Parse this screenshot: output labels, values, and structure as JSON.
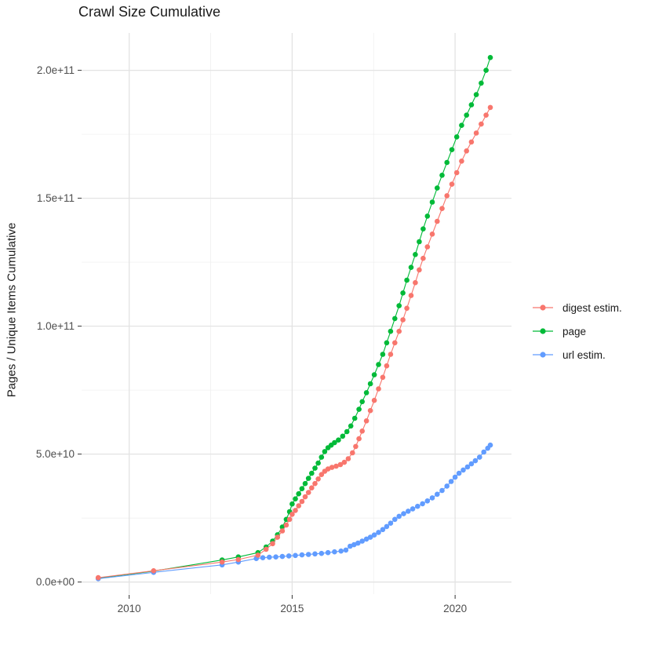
{
  "chart_data": {
    "type": "line",
    "title": "Crawl Size Cumulative",
    "xlabel": "",
    "ylabel": "Pages / Unique Items Cumulative",
    "value_unit_note": "values stored in billions (1e9); axis shows scientific notation",
    "grid": true,
    "legend_position": "right",
    "x_domain": [
      2008.54,
      2021.73
    ],
    "y_domain_billions": [
      -4.7,
      214.6
    ],
    "x_major_ticks": [
      {
        "value": 2010,
        "label": "2010"
      },
      {
        "value": 2015,
        "label": "2015"
      },
      {
        "value": 2020,
        "label": "2020"
      }
    ],
    "x_minor_ticks": [
      2012.5,
      2017.5
    ],
    "y_major_ticks": [
      {
        "value": 0,
        "label": "0.0e+00"
      },
      {
        "value": 50,
        "label": "5.0e+10"
      },
      {
        "value": 100,
        "label": "1.0e+11"
      },
      {
        "value": 150,
        "label": "1.5e+11"
      },
      {
        "value": 200,
        "label": "2.0e+11"
      }
    ],
    "y_minor_ticks": [
      25,
      75,
      125,
      175
    ],
    "series": [
      {
        "name": "digest estim.",
        "color": "#F8766D",
        "points": [
          [
            2009.05,
            1.7
          ],
          [
            2010.75,
            4.4
          ],
          [
            2012.85,
            7.8
          ],
          [
            2013.35,
            8.8
          ],
          [
            2013.95,
            10.5
          ],
          [
            2014.2,
            12.8
          ],
          [
            2014.4,
            15
          ],
          [
            2014.55,
            17.5
          ],
          [
            2014.7,
            20
          ],
          [
            2014.82,
            22.3
          ],
          [
            2014.92,
            24.5
          ],
          [
            2015.0,
            26.5
          ],
          [
            2015.1,
            28
          ],
          [
            2015.2,
            29.8
          ],
          [
            2015.3,
            31.5
          ],
          [
            2015.4,
            33.3
          ],
          [
            2015.5,
            35
          ],
          [
            2015.6,
            36.8
          ],
          [
            2015.7,
            38.5
          ],
          [
            2015.8,
            40.3
          ],
          [
            2015.9,
            42
          ],
          [
            2016.0,
            43.3
          ],
          [
            2016.1,
            44.2
          ],
          [
            2016.22,
            44.8
          ],
          [
            2016.35,
            45.3
          ],
          [
            2016.48,
            45.9
          ],
          [
            2016.6,
            46.8
          ],
          [
            2016.72,
            48.2
          ],
          [
            2016.85,
            50.5
          ],
          [
            2016.95,
            53
          ],
          [
            2017.05,
            56
          ],
          [
            2017.15,
            59
          ],
          [
            2017.28,
            63
          ],
          [
            2017.4,
            67
          ],
          [
            2017.52,
            71
          ],
          [
            2017.65,
            75.5
          ],
          [
            2017.78,
            80
          ],
          [
            2017.9,
            84.5
          ],
          [
            2018.02,
            89
          ],
          [
            2018.15,
            93.5
          ],
          [
            2018.28,
            98
          ],
          [
            2018.4,
            102.5
          ],
          [
            2018.52,
            107
          ],
          [
            2018.65,
            112
          ],
          [
            2018.78,
            117
          ],
          [
            2018.9,
            122
          ],
          [
            2019.02,
            126.5
          ],
          [
            2019.15,
            131
          ],
          [
            2019.3,
            136
          ],
          [
            2019.45,
            141
          ],
          [
            2019.6,
            146
          ],
          [
            2019.75,
            151
          ],
          [
            2019.9,
            155.5
          ],
          [
            2020.05,
            160
          ],
          [
            2020.2,
            164.5
          ],
          [
            2020.35,
            168.5
          ],
          [
            2020.5,
            172
          ],
          [
            2020.65,
            175.5
          ],
          [
            2020.8,
            179
          ],
          [
            2020.95,
            182.5
          ],
          [
            2021.08,
            185.5
          ]
        ]
      },
      {
        "name": "page",
        "color": "#00BA38",
        "points": [
          [
            2009.05,
            1.5
          ],
          [
            2010.75,
            4.3
          ],
          [
            2012.85,
            8.6
          ],
          [
            2013.35,
            9.8
          ],
          [
            2013.95,
            11.5
          ],
          [
            2014.2,
            13.7
          ],
          [
            2014.4,
            16
          ],
          [
            2014.55,
            18.5
          ],
          [
            2014.7,
            21.5
          ],
          [
            2014.82,
            24.5
          ],
          [
            2014.92,
            27.5
          ],
          [
            2015.0,
            30.5
          ],
          [
            2015.1,
            32.5
          ],
          [
            2015.2,
            34.5
          ],
          [
            2015.3,
            36.5
          ],
          [
            2015.4,
            38.5
          ],
          [
            2015.5,
            40.5
          ],
          [
            2015.6,
            42.5
          ],
          [
            2015.7,
            44.5
          ],
          [
            2015.8,
            46.5
          ],
          [
            2015.9,
            48.8
          ],
          [
            2016.0,
            51
          ],
          [
            2016.1,
            52.5
          ],
          [
            2016.2,
            53.5
          ],
          [
            2016.3,
            54.5
          ],
          [
            2016.42,
            55.5
          ],
          [
            2016.55,
            57
          ],
          [
            2016.68,
            58.8
          ],
          [
            2016.8,
            61
          ],
          [
            2016.92,
            64
          ],
          [
            2017.05,
            67.5
          ],
          [
            2017.15,
            70.5
          ],
          [
            2017.28,
            74
          ],
          [
            2017.4,
            77.5
          ],
          [
            2017.52,
            81
          ],
          [
            2017.65,
            85
          ],
          [
            2017.78,
            89
          ],
          [
            2017.9,
            93.5
          ],
          [
            2018.02,
            98
          ],
          [
            2018.15,
            103
          ],
          [
            2018.28,
            108
          ],
          [
            2018.4,
            113
          ],
          [
            2018.52,
            118
          ],
          [
            2018.65,
            123
          ],
          [
            2018.78,
            128
          ],
          [
            2018.9,
            133
          ],
          [
            2019.02,
            138
          ],
          [
            2019.15,
            143
          ],
          [
            2019.3,
            148.5
          ],
          [
            2019.45,
            154
          ],
          [
            2019.6,
            159
          ],
          [
            2019.75,
            164
          ],
          [
            2019.9,
            169
          ],
          [
            2020.05,
            174
          ],
          [
            2020.2,
            178.5
          ],
          [
            2020.35,
            182.5
          ],
          [
            2020.5,
            186.5
          ],
          [
            2020.65,
            190.5
          ],
          [
            2020.8,
            195
          ],
          [
            2020.95,
            200
          ],
          [
            2021.08,
            205
          ]
        ]
      },
      {
        "name": "url estim.",
        "color": "#619CFF",
        "points": [
          [
            2009.05,
            1.3
          ],
          [
            2010.75,
            3.8
          ],
          [
            2012.85,
            6.7
          ],
          [
            2013.35,
            7.8
          ],
          [
            2013.9,
            9.2
          ],
          [
            2014.1,
            9.5
          ],
          [
            2014.3,
            9.7
          ],
          [
            2014.5,
            9.8
          ],
          [
            2014.7,
            10
          ],
          [
            2014.9,
            10.2
          ],
          [
            2015.1,
            10.4
          ],
          [
            2015.3,
            10.6
          ],
          [
            2015.5,
            10.8
          ],
          [
            2015.7,
            11
          ],
          [
            2015.9,
            11.2
          ],
          [
            2016.1,
            11.5
          ],
          [
            2016.3,
            11.8
          ],
          [
            2016.5,
            12.1
          ],
          [
            2016.65,
            12.5
          ],
          [
            2016.78,
            14
          ],
          [
            2016.9,
            14.6
          ],
          [
            2017.02,
            15.2
          ],
          [
            2017.15,
            16
          ],
          [
            2017.28,
            16.8
          ],
          [
            2017.4,
            17.5
          ],
          [
            2017.52,
            18.4
          ],
          [
            2017.65,
            19.4
          ],
          [
            2017.78,
            20.5
          ],
          [
            2017.9,
            21.7
          ],
          [
            2018.02,
            23
          ],
          [
            2018.15,
            24.5
          ],
          [
            2018.28,
            25.7
          ],
          [
            2018.42,
            26.7
          ],
          [
            2018.56,
            27.7
          ],
          [
            2018.7,
            28.6
          ],
          [
            2018.85,
            29.6
          ],
          [
            2019.0,
            30.6
          ],
          [
            2019.15,
            31.7
          ],
          [
            2019.3,
            32.9
          ],
          [
            2019.45,
            34.3
          ],
          [
            2019.6,
            35.8
          ],
          [
            2019.75,
            37.5
          ],
          [
            2019.88,
            39.3
          ],
          [
            2020.0,
            41
          ],
          [
            2020.12,
            42.5
          ],
          [
            2020.25,
            43.8
          ],
          [
            2020.38,
            45
          ],
          [
            2020.5,
            46.2
          ],
          [
            2020.62,
            47.4
          ],
          [
            2020.75,
            48.8
          ],
          [
            2020.88,
            50.8
          ],
          [
            2021.0,
            52.3
          ],
          [
            2021.08,
            53.5
          ]
        ]
      }
    ],
    "colors": {
      "grid_major": "#E3E3E3",
      "grid_minor": "#F0F0F0",
      "tick_mark": "#333333",
      "tick_label": "#4D4D4D",
      "background": "#FFFFFF"
    }
  }
}
